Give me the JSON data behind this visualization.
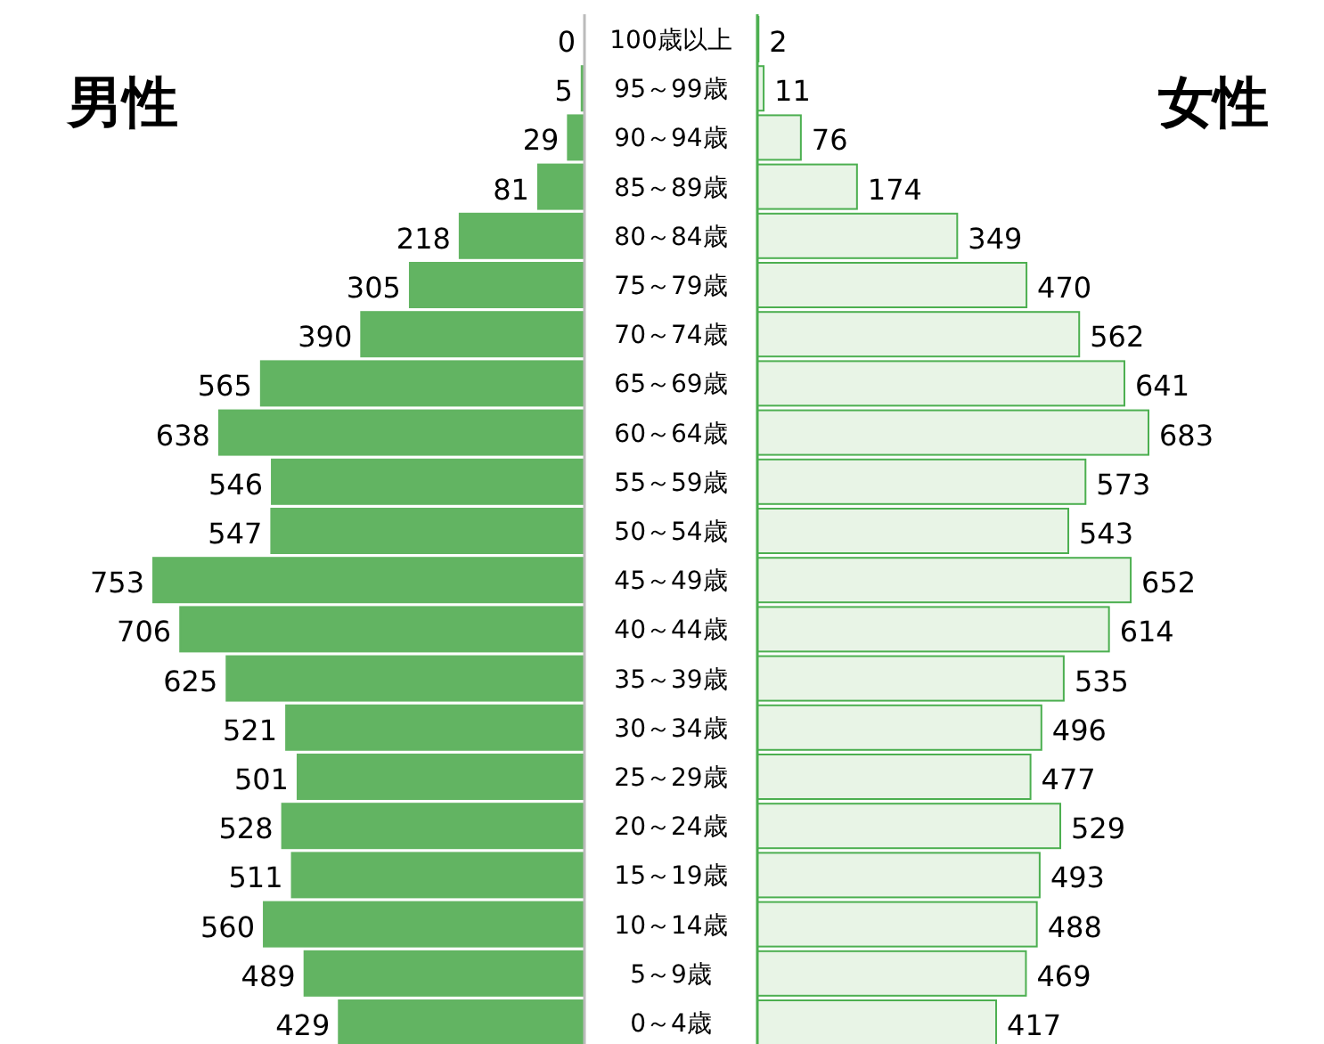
{
  "chart_data": [
    {
      "type": "bar",
      "orientation": "horizontal",
      "title": "男性",
      "color": "#62b462",
      "data_labels": true,
      "tick_labels": false,
      "categories": [
        "100歳以上",
        "95～99歳",
        "90～94歳",
        "85～89歳",
        "80～84歳",
        "75～79歳",
        "70～74歳",
        "65～69歳",
        "60～64歳",
        "55～59歳",
        "50～54歳",
        "45～49歳",
        "40～44歳",
        "35～39歳",
        "30～34歳",
        "25～29歳",
        "20～24歳",
        "15～19歳",
        "10～14歳",
        "5～9歳",
        "0～4歳"
      ],
      "values": [
        0,
        5,
        29,
        81,
        218,
        305,
        390,
        565,
        638,
        546,
        547,
        753,
        706,
        625,
        521,
        501,
        528,
        511,
        560,
        489,
        429
      ]
    },
    {
      "type": "bar",
      "orientation": "horizontal",
      "title": "女性",
      "color": "#e8f4e6",
      "data_labels": true,
      "tick_labels": "y",
      "categories": [
        "100歳以上",
        "95～99歳",
        "90～94歳",
        "85～89歳",
        "80～84歳",
        "75～79歳",
        "70～74歳",
        "65～69歳",
        "60～64歳",
        "55～59歳",
        "50～54歳",
        "45～49歳",
        "40～44歳",
        "35～39歳",
        "30～34歳",
        "25～29歳",
        "20～24歳",
        "15～19歳",
        "10～14歳",
        "5～9歳",
        "0～4歳"
      ],
      "values": [
        2,
        11,
        76,
        174,
        349,
        470,
        562,
        641,
        683,
        573,
        543,
        652,
        614,
        535,
        496,
        477,
        529,
        493,
        488,
        469,
        417
      ]
    }
  ]
}
